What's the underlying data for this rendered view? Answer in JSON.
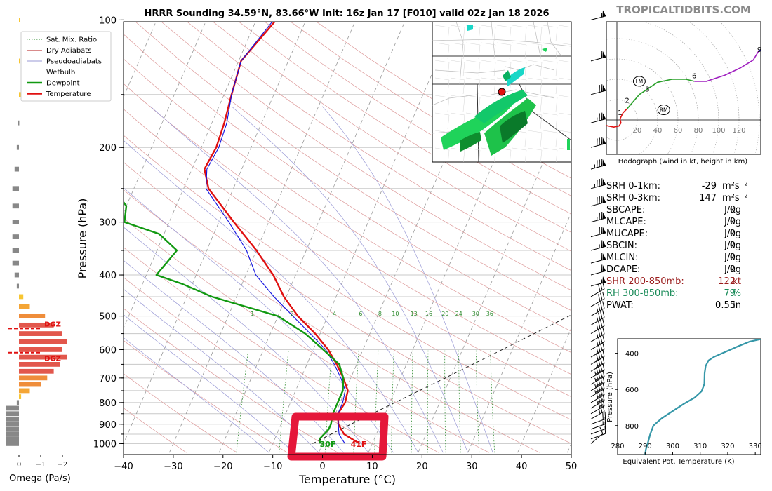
{
  "header": {
    "title": "HRRR Sounding 34.59°N, 83.66°W Init: 16z Jan 17 [F010] valid 02z Jan 18 2026",
    "brand": "TROPICALTIDBITS.COM"
  },
  "legend": {
    "items": [
      {
        "label": "Sat. Mix. Ratio",
        "color": "#2e8b2e",
        "style": "dotted"
      },
      {
        "label": "Dry Adiabats",
        "color": "#d98b8b",
        "style": "solid"
      },
      {
        "label": "Pseudoadiabats",
        "color": "#9a9ad6",
        "style": "solid"
      },
      {
        "label": "Wetbulb",
        "color": "#1010e0",
        "style": "solid"
      },
      {
        "label": "Dewpoint",
        "color": "#119911",
        "style": "thick"
      },
      {
        "label": "Temperature",
        "color": "#e01010",
        "style": "thick"
      }
    ]
  },
  "chart_data": [
    {
      "type": "line",
      "name": "skew-t",
      "xlabel": "Temperature (°C)",
      "ylabel": "Pressure (hPa)",
      "xlim": [
        -40,
        50
      ],
      "ylim": [
        1050,
        100
      ],
      "y_scale": "log",
      "skew_per_decade_px": 260,
      "x_ticks": [
        -40,
        -30,
        -20,
        -10,
        0,
        10,
        20,
        30,
        40,
        50
      ],
      "y_ticks": [
        100,
        200,
        300,
        400,
        500,
        600,
        700,
        800,
        900,
        1000
      ],
      "isobars": [
        100,
        150,
        200,
        250,
        300,
        350,
        400,
        450,
        500,
        550,
        600,
        650,
        700,
        750,
        800,
        850,
        900,
        950,
        1000
      ],
      "dry_adiabat_thetas": [
        -30,
        -20,
        -10,
        0,
        10,
        20,
        30,
        40,
        50,
        60,
        70,
        80,
        90,
        100,
        110,
        120,
        130,
        140,
        150,
        160,
        170,
        180
      ],
      "pseudoadiabat_bases": [
        -10,
        -5,
        0,
        5,
        10,
        15,
        20,
        25,
        30,
        35
      ],
      "mixing_ratios": [
        1,
        2,
        4,
        6,
        8,
        10,
        13,
        16,
        20,
        24,
        30,
        36
      ],
      "series": [
        {
          "name": "Temperature",
          "color": "#e01010",
          "points": [
            [
              1000,
              7.5
            ],
            [
              975,
              5.5
            ],
            [
              950,
              3.5
            ],
            [
              925,
              2.5
            ],
            [
              900,
              1.5
            ],
            [
              850,
              0.5
            ],
            [
              800,
              1.0
            ],
            [
              750,
              0.5
            ],
            [
              700,
              -1.5
            ],
            [
              650,
              -4.0
            ],
            [
              600,
              -7.0
            ],
            [
              550,
              -11.0
            ],
            [
              500,
              -16.0
            ],
            [
              450,
              -20.5
            ],
            [
              400,
              -24.5
            ],
            [
              350,
              -30.0
            ],
            [
              300,
              -37.0
            ],
            [
              250,
              -45.0
            ],
            [
              225,
              -47.5
            ],
            [
              200,
              -47.0
            ],
            [
              175,
              -47.5
            ],
            [
              150,
              -48.5
            ],
            [
              125,
              -49.5
            ],
            [
              100,
              -46.0
            ]
          ]
        },
        {
          "name": "Wetbulb",
          "color": "#1010e0",
          "points": [
            [
              1000,
              4.5
            ],
            [
              975,
              3.5
            ],
            [
              950,
              2.5
            ],
            [
              925,
              2.0
            ],
            [
              900,
              1.5
            ],
            [
              850,
              0.5
            ],
            [
              800,
              0.5
            ],
            [
              750,
              0.0
            ],
            [
              700,
              -2.0
            ],
            [
              650,
              -4.5
            ],
            [
              600,
              -7.5
            ],
            [
              550,
              -12.0
            ],
            [
              500,
              -17.0
            ],
            [
              450,
              -22.5
            ],
            [
              400,
              -28.0
            ],
            [
              350,
              -32.0
            ],
            [
              300,
              -38.0
            ],
            [
              250,
              -45.5
            ],
            [
              225,
              -47.0
            ],
            [
              200,
              -46.5
            ],
            [
              175,
              -47.0
            ],
            [
              150,
              -48.5
            ],
            [
              125,
              -49.5
            ],
            [
              100,
              -46.5
            ]
          ]
        },
        {
          "name": "Dewpoint",
          "color": "#119911",
          "points": [
            [
              1000,
              -0.5
            ],
            [
              975,
              -1.0
            ],
            [
              950,
              -0.5
            ],
            [
              925,
              0.0
            ],
            [
              900,
              0.0
            ],
            [
              850,
              -0.5
            ],
            [
              800,
              -0.5
            ],
            [
              750,
              -0.5
            ],
            [
              700,
              -1.5
            ],
            [
              650,
              -3.5
            ],
            [
              600,
              -8.0
            ],
            [
              550,
              -13.0
            ],
            [
              500,
              -20.0
            ],
            [
              450,
              -35.0
            ],
            [
              420,
              -42.0
            ],
            [
              400,
              -48.0
            ],
            [
              350,
              -46.0
            ],
            [
              320,
              -51.0
            ],
            [
              300,
              -59.0
            ],
            [
              275,
              -60.0
            ],
            [
              250,
              -64.0
            ],
            [
              225,
              -78.0
            ],
            [
              200,
              -79.0
            ],
            [
              175,
              -85.0
            ],
            [
              150,
              -93.0
            ],
            [
              125,
              -97.0
            ],
            [
              100,
              -90.0
            ]
          ]
        },
        {
          "name": "parcel",
          "color": "#111111",
          "dashed": true,
          "points": [
            [
              1000,
              -2.0
            ],
            [
              900,
              4.0
            ],
            [
              800,
              11.0
            ],
            [
              700,
              19.0
            ],
            [
              600,
              28.0
            ],
            [
              500,
              38.5
            ],
            [
              400,
              51.0
            ]
          ]
        }
      ],
      "annotations": {
        "dewpoint_surface": "30F",
        "temperature_surface": "41F"
      }
    },
    {
      "type": "bar",
      "name": "omega",
      "xlabel": "Omega (Pa/s)",
      "x_ticks": [
        "0",
        "−1",
        "−2"
      ],
      "xlim": [
        0.5,
        -2.4
      ],
      "dgz_label": "DGZ",
      "dgz_levels": [
        535,
        610
      ],
      "bars": [
        {
          "p": 1000,
          "v": 0.6
        },
        {
          "p": 975,
          "v": 0.6
        },
        {
          "p": 950,
          "v": 0.6
        },
        {
          "p": 925,
          "v": 0.6
        },
        {
          "p": 900,
          "v": 0.6
        },
        {
          "p": 875,
          "v": 0.6
        },
        {
          "p": 850,
          "v": 0.6
        },
        {
          "p": 825,
          "v": 0.6
        },
        {
          "p": 800,
          "v": 0.1
        },
        {
          "p": 775,
          "v": -0.1
        },
        {
          "p": 750,
          "v": -0.5
        },
        {
          "p": 725,
          "v": -1.0
        },
        {
          "p": 700,
          "v": -1.3
        },
        {
          "p": 675,
          "v": -1.6
        },
        {
          "p": 650,
          "v": -1.9
        },
        {
          "p": 625,
          "v": -2.2
        },
        {
          "p": 600,
          "v": -2.0
        },
        {
          "p": 575,
          "v": -2.2
        },
        {
          "p": 550,
          "v": -2.0
        },
        {
          "p": 525,
          "v": -1.6
        },
        {
          "p": 500,
          "v": -1.2
        },
        {
          "p": 475,
          "v": -0.5
        },
        {
          "p": 450,
          "v": -0.2
        },
        {
          "p": 425,
          "v": 0.1
        },
        {
          "p": 400,
          "v": 0.2
        },
        {
          "p": 375,
          "v": 0.3
        },
        {
          "p": 350,
          "v": 0.3
        },
        {
          "p": 325,
          "v": 0.3
        },
        {
          "p": 300,
          "v": 0.3
        },
        {
          "p": 275,
          "v": 0.3
        },
        {
          "p": 250,
          "v": 0.3
        },
        {
          "p": 225,
          "v": 0.2
        },
        {
          "p": 200,
          "v": 0.1
        },
        {
          "p": 175,
          "v": 0.05
        },
        {
          "p": 150,
          "v": -0.1
        },
        {
          "p": 125,
          "v": -0.05
        },
        {
          "p": 100,
          "v": -0.05
        }
      ]
    },
    {
      "type": "line",
      "name": "hodograph",
      "xlabel": "Hodograph (wind in kt, height in km)",
      "ring_labels": [
        "20",
        "40",
        "60",
        "80",
        "100",
        "120"
      ],
      "segments": [
        {
          "color": "#e01010",
          "points": [
            [
              -13,
              -5
            ],
            [
              -3,
              -7
            ],
            [
              2,
              -6
            ],
            [
              4,
              -3
            ],
            [
              3,
              1
            ]
          ]
        },
        {
          "color": "#e01010",
          "points": [
            [
              3,
              1
            ],
            [
              6,
              7
            ],
            [
              10,
              11
            ]
          ]
        },
        {
          "color": "#2aa02a",
          "points": [
            [
              10,
              11
            ],
            [
              22,
              25
            ],
            [
              40,
              37
            ],
            [
              54,
              40
            ],
            [
              68,
              40
            ],
            [
              76,
              38
            ]
          ]
        },
        {
          "color": "#a020c0",
          "points": [
            [
              76,
              38
            ],
            [
              88,
              38
            ],
            [
              106,
              44
            ],
            [
              121,
              51
            ],
            [
              134,
              59
            ],
            [
              140,
              69
            ]
          ]
        },
        {
          "color": "#2020e0",
          "points": [
            [
              140,
              69
            ],
            [
              148,
              64
            ],
            [
              165,
              61
            ],
            [
              167,
              67
            ]
          ]
        }
      ],
      "labels": [
        {
          "text": "1",
          "u": 3,
          "v": 7
        },
        {
          "text": "2",
          "u": 10,
          "v": 19
        },
        {
          "text": "3",
          "u": 30,
          "v": 30
        },
        {
          "text": "6",
          "u": 76,
          "v": 43
        },
        {
          "text": "9",
          "u": 140,
          "v": 69
        }
      ],
      "markers": [
        {
          "text": "LM",
          "u": 22,
          "v": 38
        },
        {
          "text": "RM",
          "u": 46,
          "v": 10
        }
      ]
    },
    {
      "type": "line",
      "name": "theta-e",
      "xlabel": "Equivalent Pot. Temperature (K)",
      "ylabel": "Pressure (hPa)",
      "xlim": [
        280,
        332
      ],
      "ylim": [
        960,
        320
      ],
      "x_ticks": [
        280,
        290,
        300,
        310,
        320,
        330
      ],
      "y_ticks": [
        400,
        600,
        800
      ],
      "points": [
        [
          290,
          960
        ],
        [
          290.3,
          930
        ],
        [
          291,
          895
        ],
        [
          291.8,
          850
        ],
        [
          293,
          800
        ],
        [
          296,
          760
        ],
        [
          300,
          720
        ],
        [
          304,
          680
        ],
        [
          308,
          645
        ],
        [
          310.5,
          610
        ],
        [
          311.5,
          570
        ],
        [
          311.6,
          510
        ],
        [
          312,
          470
        ],
        [
          313,
          440
        ],
        [
          315,
          420
        ],
        [
          318,
          400
        ],
        [
          321,
          380
        ],
        [
          324,
          360
        ],
        [
          328,
          335
        ],
        [
          332,
          322
        ]
      ]
    }
  ],
  "indices": [
    {
      "label": "SRH 0-1km:",
      "value": "-29",
      "unit": "m²s⁻²",
      "color": "#000000"
    },
    {
      "label": "SRH 0-3km:",
      "value": "147",
      "unit": "m²s⁻²",
      "color": "#000000"
    },
    {
      "label": "SBCAPE:",
      "value": "0",
      "unit": "J/kg",
      "color": "#000000"
    },
    {
      "label": "MLCAPE:",
      "value": "0",
      "unit": "J/kg",
      "color": "#000000"
    },
    {
      "label": "MUCAPE:",
      "value": "0",
      "unit": "J/kg",
      "color": "#000000"
    },
    {
      "label": "SBCIN:",
      "value": "0",
      "unit": "J/kg",
      "color": "#000000"
    },
    {
      "label": "MLCIN:",
      "value": "0",
      "unit": "J/kg",
      "color": "#000000"
    },
    {
      "label": "DCAPE:",
      "value": "0",
      "unit": "J/kg",
      "color": "#000000"
    },
    {
      "label": "SHR 200-850mb:",
      "value": "122",
      "unit": "kt",
      "color": "#9a1c1c"
    },
    {
      "label": "RH 300-850mb:",
      "value": "79",
      "unit": "%",
      "color": "#178a57"
    },
    {
      "label": "PWAT:",
      "value": "0.55",
      "unit": "in",
      "color": "#000000"
    }
  ],
  "wind_barbs": [
    {
      "p": 1000,
      "spd": 10,
      "dir": 230
    },
    {
      "p": 975,
      "spd": 10,
      "dir": 250
    },
    {
      "p": 950,
      "spd": 10,
      "dir": 250
    },
    {
      "p": 925,
      "spd": 15,
      "dir": 250
    },
    {
      "p": 900,
      "spd": 20,
      "dir": 250
    },
    {
      "p": 875,
      "spd": 25,
      "dir": 240
    },
    {
      "p": 850,
      "spd": 30,
      "dir": 240
    },
    {
      "p": 825,
      "spd": 35,
      "dir": 240
    },
    {
      "p": 800,
      "spd": 40,
      "dir": 240
    },
    {
      "p": 775,
      "spd": 45,
      "dir": 240
    },
    {
      "p": 750,
      "spd": 45,
      "dir": 240
    },
    {
      "p": 725,
      "spd": 45,
      "dir": 240
    },
    {
      "p": 700,
      "spd": 45,
      "dir": 240
    },
    {
      "p": 675,
      "spd": 40,
      "dir": 240
    },
    {
      "p": 650,
      "spd": 40,
      "dir": 240
    },
    {
      "p": 625,
      "spd": 35,
      "dir": 240
    },
    {
      "p": 600,
      "spd": 35,
      "dir": 240
    },
    {
      "p": 575,
      "spd": 35,
      "dir": 240
    },
    {
      "p": 550,
      "spd": 35,
      "dir": 240
    },
    {
      "p": 525,
      "spd": 35,
      "dir": 240
    },
    {
      "p": 500,
      "spd": 35,
      "dir": 240
    },
    {
      "p": 475,
      "spd": 30,
      "dir": 240
    },
    {
      "p": 450,
      "spd": 30,
      "dir": 240
    },
    {
      "p": 425,
      "spd": 55,
      "dir": 255
    },
    {
      "p": 400,
      "spd": 60,
      "dir": 255
    },
    {
      "p": 375,
      "spd": 60,
      "dir": 255
    },
    {
      "p": 350,
      "spd": 65,
      "dir": 255
    },
    {
      "p": 325,
      "spd": 70,
      "dir": 255
    },
    {
      "p": 300,
      "spd": 75,
      "dir": 255
    },
    {
      "p": 275,
      "spd": 80,
      "dir": 255
    },
    {
      "p": 250,
      "spd": 85,
      "dir": 255
    },
    {
      "p": 225,
      "spd": 85,
      "dir": 255
    },
    {
      "p": 200,
      "spd": 80,
      "dir": 255
    },
    {
      "p": 175,
      "spd": 75,
      "dir": 255
    },
    {
      "p": 150,
      "spd": 70,
      "dir": 255
    },
    {
      "p": 125,
      "spd": 60,
      "dir": 255
    },
    {
      "p": 100,
      "spd": 55,
      "dir": 255
    }
  ]
}
